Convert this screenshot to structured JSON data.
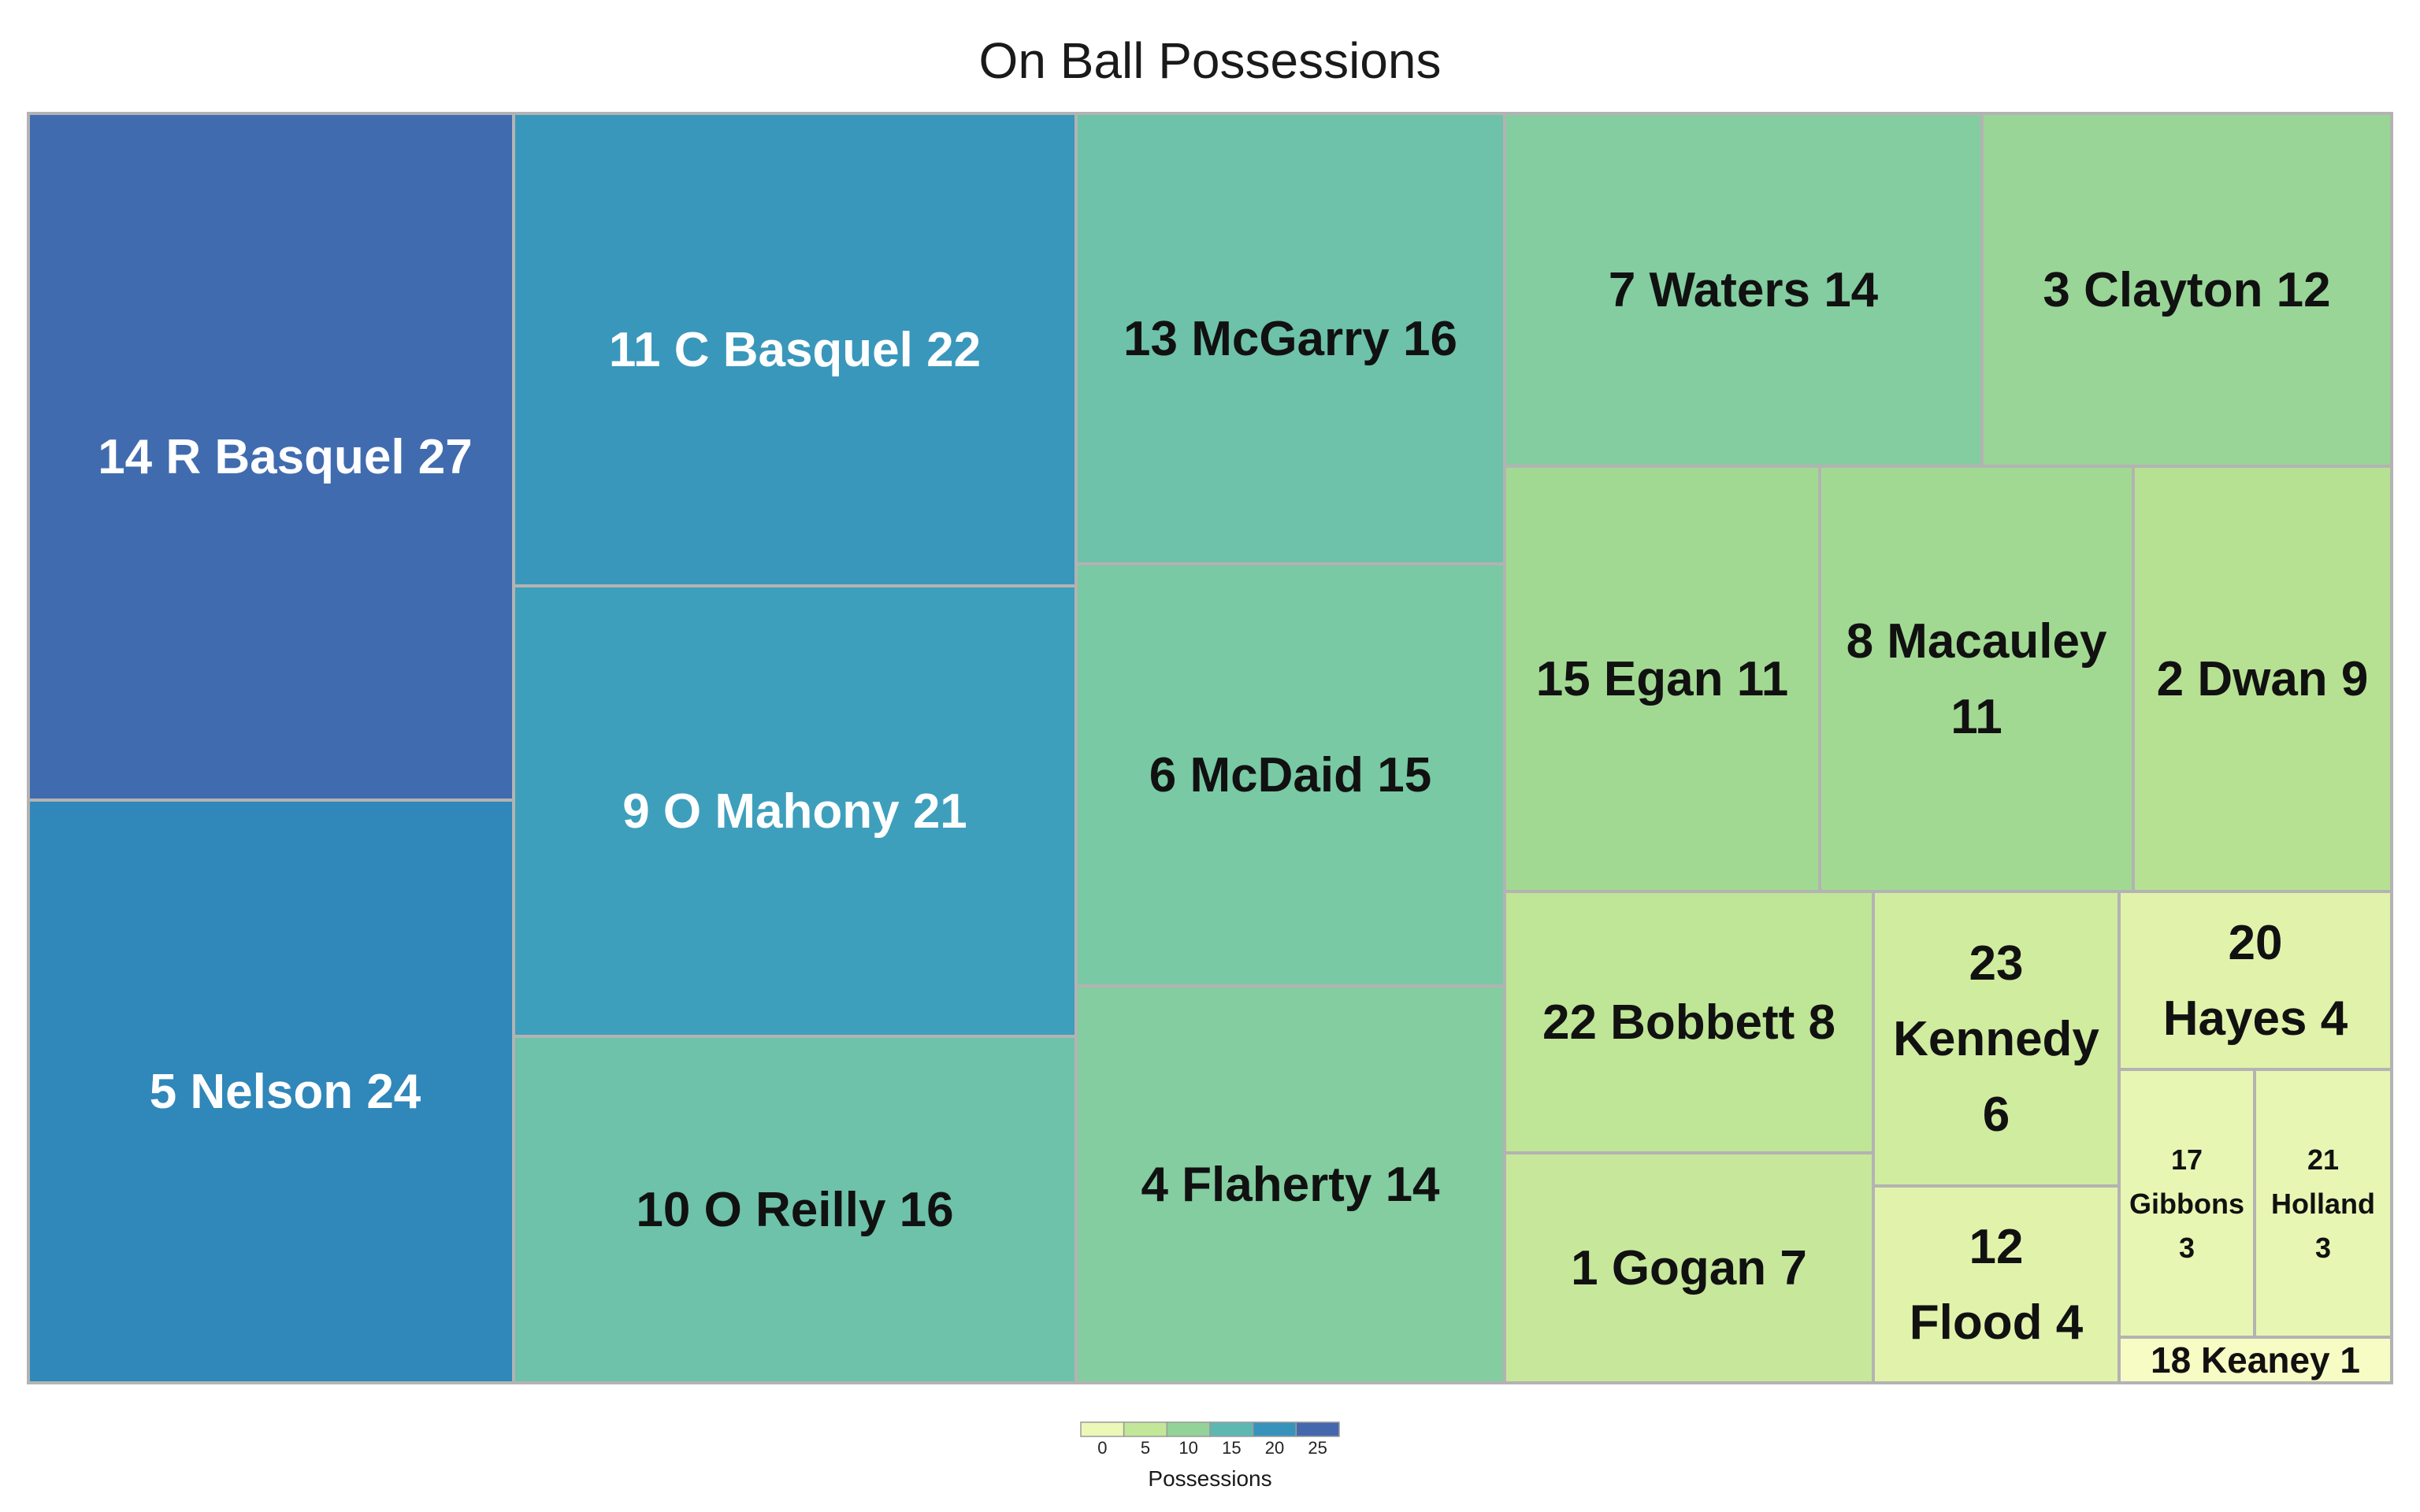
{
  "chart_data": {
    "type": "treemap",
    "title": "On Ball Possessions",
    "color_scale": {
      "label": "Possessions",
      "ticks": [
        0,
        5,
        10,
        15,
        20,
        25
      ],
      "domain": [
        0,
        30
      ],
      "colors": [
        "#ffffcc",
        "#d9f0a3",
        "#addd8e",
        "#78c9a4",
        "#41a7bd",
        "#2c7fb8",
        "#5e4fa2"
      ]
    },
    "cells": [
      {
        "label": "14 R Basquel  27",
        "value": 27
      },
      {
        "label": "5 Nelson 24",
        "value": 24
      },
      {
        "label": "11 C Basquel  22",
        "value": 22
      },
      {
        "label": "9 O Mahony  21",
        "value": 21
      },
      {
        "label": "10 O Reilly 16",
        "value": 16
      },
      {
        "label": "13 McGarry 16",
        "value": 16
      },
      {
        "label": "6 McDaid 15",
        "value": 15
      },
      {
        "label": "4 Flaherty 14",
        "value": 14
      },
      {
        "label": "7 Waters 14",
        "value": 14
      },
      {
        "label": "3 Clayton 12",
        "value": 12
      },
      {
        "label": "15 Egan 11",
        "value": 11
      },
      {
        "label": "8 Macauley 11",
        "value": 11
      },
      {
        "label": "2 Dwan 9",
        "value": 9
      },
      {
        "label": "22 Bobbett 8",
        "value": 8
      },
      {
        "label": "1 Gogan 7",
        "value": 7
      },
      {
        "label": "23 Kennedy 6",
        "value": 6
      },
      {
        "label": "12 Flood 4",
        "value": 4
      },
      {
        "label": "20 Hayes 4",
        "value": 4
      },
      {
        "label": "17 Gibbons 3",
        "value": 3
      },
      {
        "label": "21 Holland 3",
        "value": 3
      },
      {
        "label": "18 Keaney 1",
        "value": 1
      }
    ]
  }
}
